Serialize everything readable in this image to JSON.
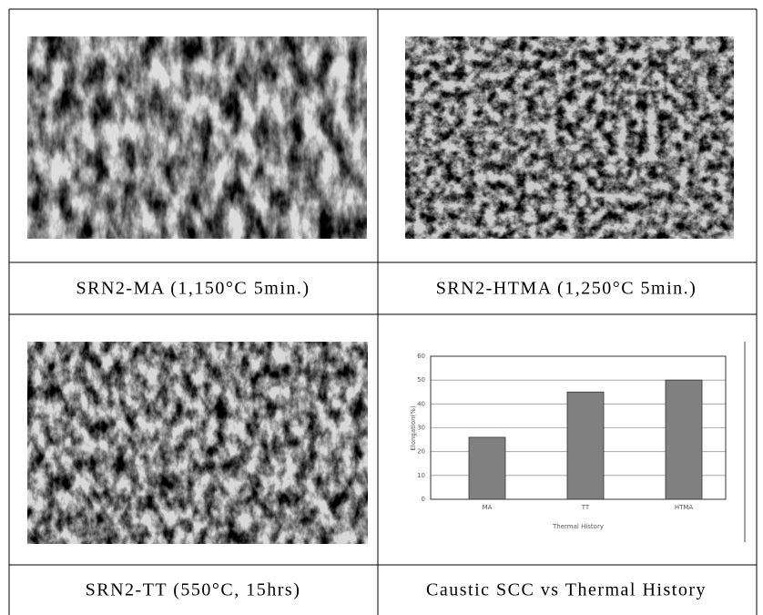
{
  "table": {
    "cells": [
      {
        "caption": "SRN2-MA (1,150°C 5min.)"
      },
      {
        "caption": "SRN2-HTMA (1,250°C 5min.)"
      },
      {
        "caption": "SRN2-TT (550°C, 15hrs)"
      },
      {
        "caption": "Caustic SCC vs Thermal History"
      }
    ]
  },
  "chart_data": {
    "type": "bar",
    "categories": [
      "MA",
      "TT",
      "HTMA"
    ],
    "values": [
      26,
      45,
      50
    ],
    "color": "#808080",
    "ylim": [
      0,
      60
    ],
    "yticks": [
      0,
      10,
      20,
      30,
      40,
      50,
      60
    ],
    "grid": true,
    "ylabel": "Elongation(%)",
    "xlabel": "Thermal History"
  }
}
